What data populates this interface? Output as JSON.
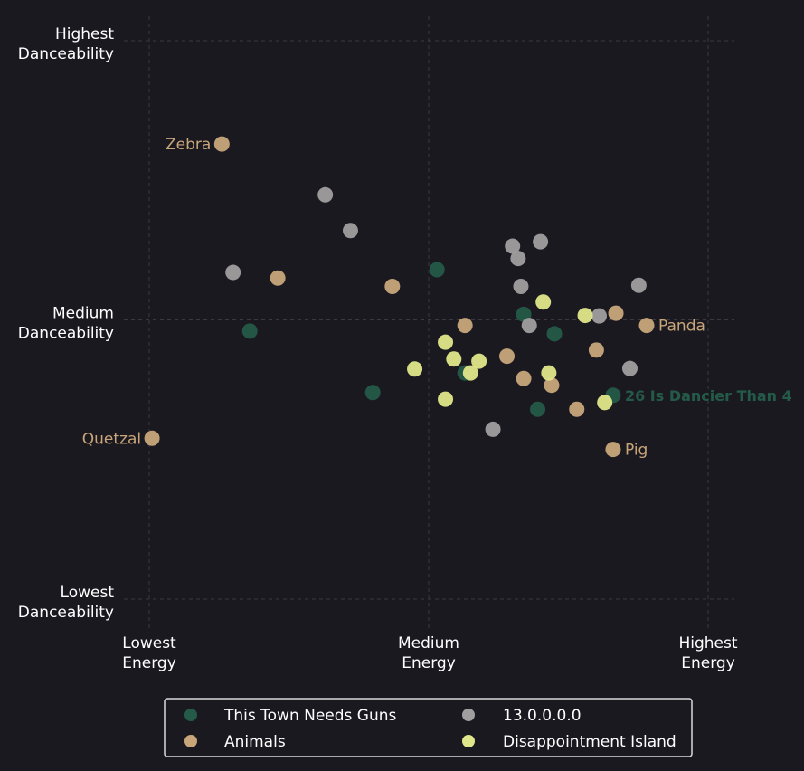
{
  "chart_data": {
    "type": "scatter",
    "title": "",
    "xlabel": "",
    "ylabel": "",
    "xlim": [
      0,
      1
    ],
    "ylim": [
      0,
      1
    ],
    "grid": true,
    "legend_position": "bottom-center",
    "x_ticks": [
      {
        "value": 0.0,
        "lines": [
          "Lowest",
          "Energy"
        ]
      },
      {
        "value": 0.5,
        "lines": [
          "Medium",
          "Energy"
        ]
      },
      {
        "value": 1.0,
        "lines": [
          "Highest",
          "Energy"
        ]
      }
    ],
    "y_ticks": [
      {
        "value": 0.0,
        "lines": [
          "Lowest",
          "Danceability"
        ]
      },
      {
        "value": 0.5,
        "lines": [
          "Medium",
          "Danceability"
        ]
      },
      {
        "value": 1.0,
        "lines": [
          "Highest",
          "Danceability"
        ]
      }
    ],
    "series": [
      {
        "name": "This Town Needs Guns",
        "color": "#245a48",
        "points": [
          {
            "x": 0.18,
            "y": 0.48
          },
          {
            "x": 0.4,
            "y": 0.37
          },
          {
            "x": 0.515,
            "y": 0.59
          },
          {
            "x": 0.67,
            "y": 0.51
          },
          {
            "x": 0.725,
            "y": 0.475
          },
          {
            "x": 0.565,
            "y": 0.405
          },
          {
            "x": 0.695,
            "y": 0.34
          },
          {
            "x": 0.83,
            "y": 0.365
          }
        ]
      },
      {
        "name": "Animals",
        "color": "#c8a67a",
        "points": [
          {
            "x": 0.13,
            "y": 0.815
          },
          {
            "x": 0.23,
            "y": 0.575
          },
          {
            "x": 0.435,
            "y": 0.56
          },
          {
            "x": 0.565,
            "y": 0.49
          },
          {
            "x": 0.64,
            "y": 0.435
          },
          {
            "x": 0.67,
            "y": 0.395
          },
          {
            "x": 0.72,
            "y": 0.383
          },
          {
            "x": 0.765,
            "y": 0.34
          },
          {
            "x": 0.8,
            "y": 0.446
          },
          {
            "x": 0.835,
            "y": 0.512
          },
          {
            "x": 0.89,
            "y": 0.49
          },
          {
            "x": 0.83,
            "y": 0.268
          },
          {
            "x": 0.005,
            "y": 0.288
          }
        ]
      },
      {
        "name": "13.0.0.0.0",
        "color": "#a09e9f",
        "points": [
          {
            "x": 0.15,
            "y": 0.585
          },
          {
            "x": 0.315,
            "y": 0.724
          },
          {
            "x": 0.36,
            "y": 0.66
          },
          {
            "x": 0.65,
            "y": 0.632
          },
          {
            "x": 0.66,
            "y": 0.61
          },
          {
            "x": 0.7,
            "y": 0.64
          },
          {
            "x": 0.665,
            "y": 0.56
          },
          {
            "x": 0.68,
            "y": 0.49
          },
          {
            "x": 0.805,
            "y": 0.507
          },
          {
            "x": 0.876,
            "y": 0.562
          },
          {
            "x": 0.86,
            "y": 0.413
          },
          {
            "x": 0.615,
            "y": 0.304
          }
        ]
      },
      {
        "name": "Disappointment Island",
        "color": "#e0e78a",
        "points": [
          {
            "x": 0.475,
            "y": 0.412
          },
          {
            "x": 0.53,
            "y": 0.46
          },
          {
            "x": 0.545,
            "y": 0.43
          },
          {
            "x": 0.53,
            "y": 0.358
          },
          {
            "x": 0.59,
            "y": 0.426
          },
          {
            "x": 0.575,
            "y": 0.405
          },
          {
            "x": 0.705,
            "y": 0.532
          },
          {
            "x": 0.78,
            "y": 0.508
          },
          {
            "x": 0.715,
            "y": 0.405
          },
          {
            "x": 0.815,
            "y": 0.352
          }
        ]
      }
    ],
    "annotations": [
      {
        "text": "Zebra",
        "x": 0.13,
        "y": 0.815,
        "side": "left",
        "color": "#c8a67a",
        "bold": false
      },
      {
        "text": "Quetzal",
        "x": 0.005,
        "y": 0.288,
        "side": "left",
        "color": "#c8a67a",
        "bold": false
      },
      {
        "text": "Panda",
        "x": 0.89,
        "y": 0.49,
        "side": "right",
        "color": "#c8a67a",
        "bold": false
      },
      {
        "text": "Pig",
        "x": 0.83,
        "y": 0.268,
        "side": "right",
        "color": "#c8a67a",
        "bold": false
      },
      {
        "text": "26 Is Dancier Than 4",
        "x": 0.83,
        "y": 0.365,
        "side": "right",
        "color": "#245a48",
        "bold": true
      }
    ]
  }
}
